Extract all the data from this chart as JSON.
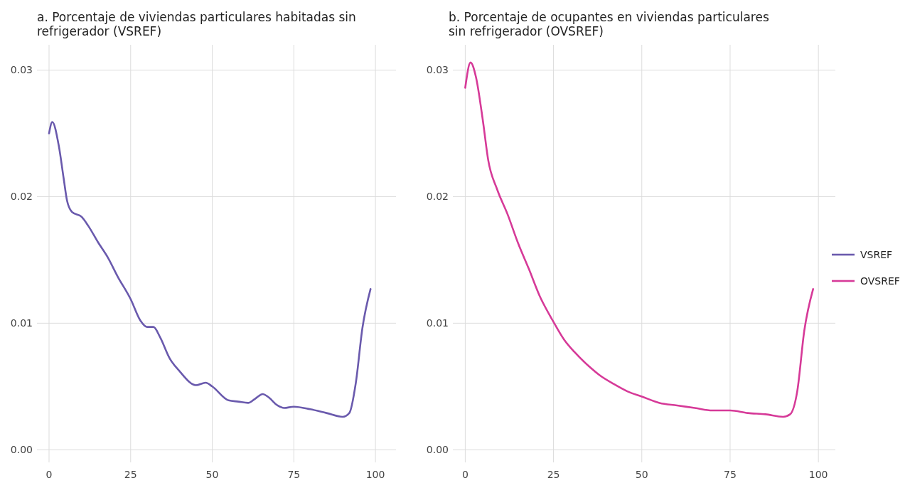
{
  "chart_data": [
    {
      "type": "line",
      "title": "a. Porcentaje de viviendas particulares habitadas sin refrigerador (VSREF)",
      "xlim": [
        -3.7,
        106.3
      ],
      "xticks": [
        0,
        25,
        50,
        75,
        100
      ],
      "ylim": [
        -0.001,
        0.032
      ],
      "yticks": [
        {
          "value": 0,
          "label": "0.00"
        },
        {
          "value": 0.01,
          "label": "0.01"
        },
        {
          "value": 0.02,
          "label": "0.02"
        },
        {
          "value": 0.03,
          "label": "0.03"
        }
      ],
      "grid": true,
      "legend": "right",
      "series": [
        {
          "name": "VSREF",
          "color": "#6a5aad",
          "x": [
            0,
            1,
            3,
            4.5,
            5.5,
            7,
            10,
            12,
            15,
            18,
            21,
            25,
            28,
            30,
            32,
            34,
            37,
            40,
            45,
            48,
            50,
            55,
            58,
            61,
            63,
            65.5,
            67,
            70,
            72,
            75,
            80,
            85,
            90,
            92,
            94,
            96,
            98.5
          ],
          "values": [
            0.025,
            0.0259,
            0.024,
            0.0214,
            0.0197,
            0.0188,
            0.0184,
            0.0177,
            0.0164,
            0.0152,
            0.0137,
            0.0119,
            0.0102,
            0.0097,
            0.0097,
            0.0089,
            0.0072,
            0.0062,
            0.0051,
            0.0053,
            0.005,
            0.0039,
            0.0038,
            0.0037,
            0.004,
            0.0044,
            0.0042,
            0.0035,
            0.0033,
            0.0034,
            0.0032,
            0.0029,
            0.0026,
            0.0029,
            0.0053,
            0.0096,
            0.0127
          ]
        }
      ]
    },
    {
      "type": "line",
      "title": "b. Porcentaje de ocupantes en viviendas particulares sin refrigerador (OVSREF)",
      "xlim": [
        -3.5,
        104.8
      ],
      "xticks": [
        0,
        25,
        50,
        75,
        100
      ],
      "ylim": [
        -0.001,
        0.032
      ],
      "yticks": [
        {
          "value": 0,
          "label": "0.00"
        },
        {
          "value": 0.01,
          "label": "0.01"
        },
        {
          "value": 0.02,
          "label": "0.02"
        },
        {
          "value": 0.03,
          "label": "0.03"
        }
      ],
      "grid": true,
      "legend": "right",
      "series": [
        {
          "name": "OVSREF",
          "color": "#d63a98",
          "x": [
            0,
            1.5,
            3,
            5,
            6.5,
            9,
            12,
            15,
            18,
            21,
            25,
            28,
            31,
            35,
            38,
            42,
            46,
            50,
            55,
            60,
            65,
            70,
            75,
            80,
            85,
            90,
            92,
            94,
            96,
            98.5
          ],
          "values": [
            0.0286,
            0.0306,
            0.0295,
            0.026,
            0.0229,
            0.0206,
            0.0186,
            0.0163,
            0.0143,
            0.0122,
            0.0101,
            0.0087,
            0.0077,
            0.0066,
            0.0059,
            0.0052,
            0.0046,
            0.0042,
            0.0037,
            0.0035,
            0.0033,
            0.0031,
            0.0031,
            0.0029,
            0.0028,
            0.0026,
            0.0028,
            0.0046,
            0.0094,
            0.0127
          ]
        }
      ]
    }
  ]
}
